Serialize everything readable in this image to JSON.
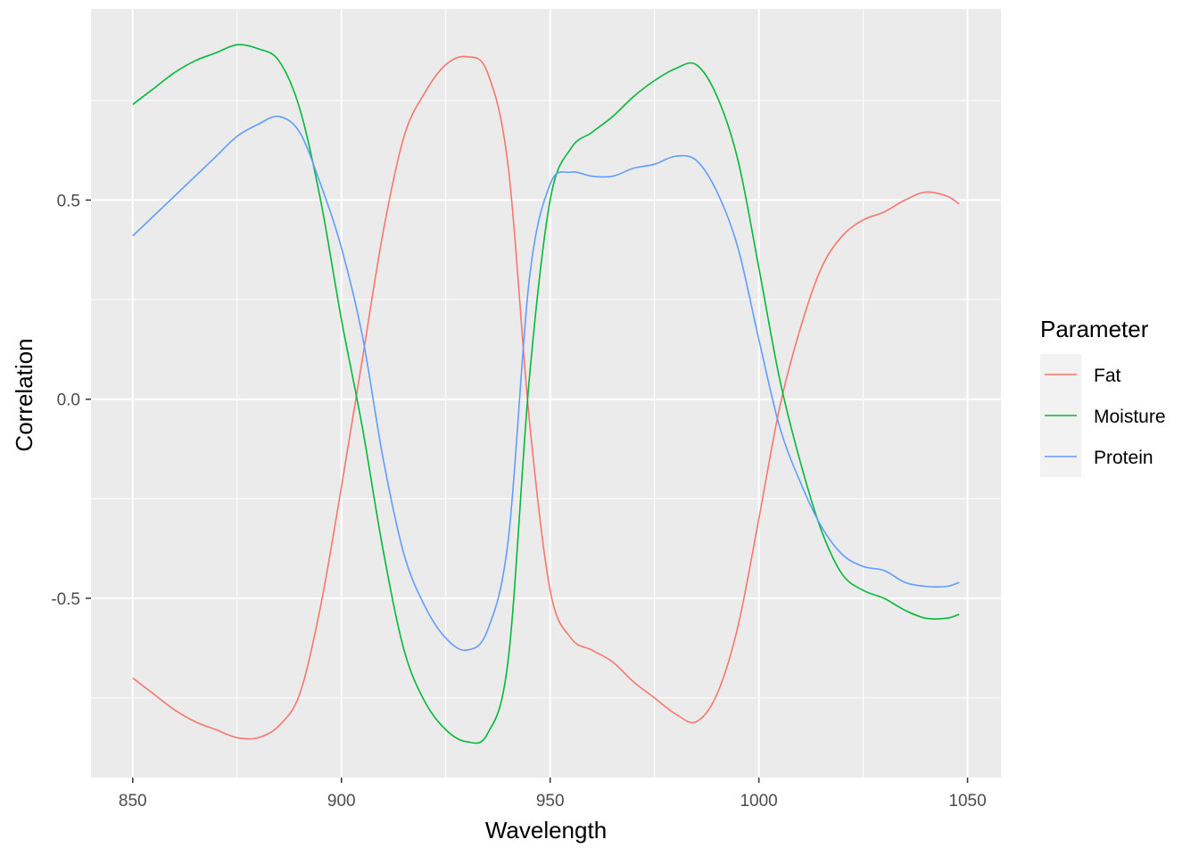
{
  "chart_data": {
    "type": "line",
    "xlabel": "Wavelength",
    "ylabel": "Correlation",
    "xlim": [
      840,
      1058
    ],
    "ylim": [
      -0.95,
      0.98
    ],
    "x_ticks": [
      850,
      900,
      950,
      1000,
      1050
    ],
    "x_tick_labels": [
      "850",
      "900",
      "950",
      "1000",
      "1050"
    ],
    "y_ticks": [
      -0.5,
      0.0,
      0.5
    ],
    "y_tick_labels": [
      "-0.5",
      "0.0",
      "0.5"
    ],
    "grid": true,
    "legend": {
      "title": "Parameter",
      "position": "right",
      "items": [
        "Fat",
        "Moisture",
        "Protein"
      ]
    },
    "x": [
      850,
      855,
      860,
      865,
      870,
      875,
      880,
      885,
      890,
      895,
      900,
      905,
      910,
      915,
      920,
      925,
      930,
      935,
      940,
      945,
      950,
      955,
      960,
      965,
      970,
      975,
      980,
      985,
      990,
      995,
      1000,
      1005,
      1010,
      1015,
      1020,
      1025,
      1030,
      1035,
      1040,
      1045,
      1048
    ],
    "series": [
      {
        "name": "Fat",
        "color": "#F8766D",
        "values": [
          -0.7,
          -0.74,
          -0.78,
          -0.81,
          -0.83,
          -0.85,
          -0.85,
          -0.82,
          -0.74,
          -0.52,
          -0.22,
          0.1,
          0.42,
          0.66,
          0.77,
          0.84,
          0.86,
          0.82,
          0.58,
          -0.05,
          -0.48,
          -0.6,
          -0.63,
          -0.66,
          -0.71,
          -0.75,
          -0.79,
          -0.81,
          -0.74,
          -0.57,
          -0.3,
          -0.02,
          0.18,
          0.33,
          0.41,
          0.45,
          0.47,
          0.5,
          0.52,
          0.51,
          0.49
        ]
      },
      {
        "name": "Moisture",
        "color": "#00BA38",
        "values": [
          0.74,
          0.78,
          0.82,
          0.85,
          0.87,
          0.89,
          0.88,
          0.85,
          0.73,
          0.5,
          0.2,
          -0.07,
          -0.38,
          -0.63,
          -0.76,
          -0.83,
          -0.86,
          -0.84,
          -0.65,
          0.05,
          0.5,
          0.63,
          0.67,
          0.71,
          0.76,
          0.8,
          0.83,
          0.84,
          0.76,
          0.6,
          0.33,
          0.05,
          -0.16,
          -0.33,
          -0.44,
          -0.48,
          -0.5,
          -0.53,
          -0.55,
          -0.55,
          -0.54
        ]
      },
      {
        "name": "Protein",
        "color": "#619CFF",
        "values": [
          0.41,
          0.46,
          0.51,
          0.56,
          0.61,
          0.66,
          0.69,
          0.71,
          0.67,
          0.54,
          0.38,
          0.16,
          -0.15,
          -0.39,
          -0.52,
          -0.6,
          -0.63,
          -0.58,
          -0.35,
          0.3,
          0.54,
          0.57,
          0.56,
          0.56,
          0.58,
          0.59,
          0.61,
          0.6,
          0.52,
          0.38,
          0.15,
          -0.07,
          -0.21,
          -0.32,
          -0.39,
          -0.42,
          -0.43,
          -0.46,
          -0.47,
          -0.47,
          -0.46
        ]
      }
    ]
  }
}
